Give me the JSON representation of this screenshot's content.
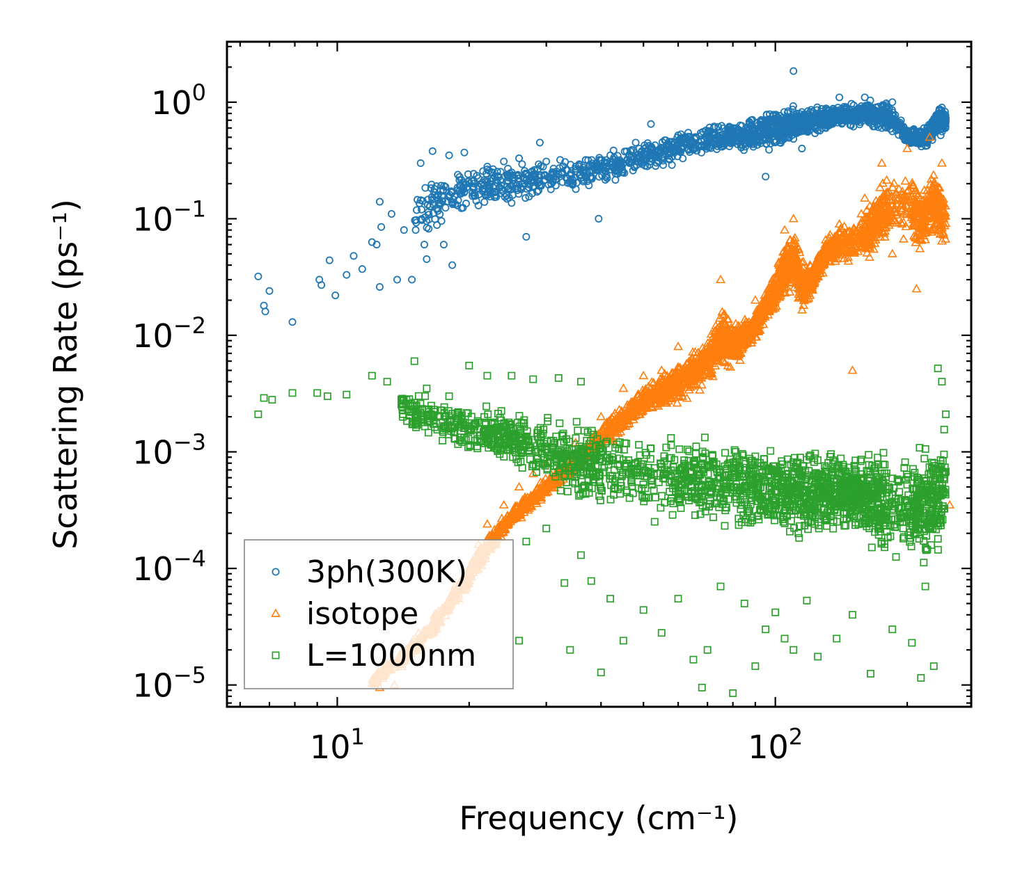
{
  "chart_data": {
    "type": "scatter",
    "xscale": "log",
    "yscale": "log",
    "xlim": [
      5.6,
      280
    ],
    "ylim": [
      6.5e-06,
      3.3
    ],
    "xlabel": "Frequency (cm⁻¹)",
    "ylabel": "Scattering Rate (ps⁻¹)",
    "x_ticks": [
      {
        "value": 10,
        "base": "10",
        "exp": "1"
      },
      {
        "value": 100,
        "base": "10",
        "exp": "2"
      }
    ],
    "y_ticks": [
      {
        "value": 1,
        "base": "10",
        "exp": "0"
      },
      {
        "value": 0.1,
        "base": "10",
        "exp": "−1"
      },
      {
        "value": 0.01,
        "base": "10",
        "exp": "−2"
      },
      {
        "value": 0.001,
        "base": "10",
        "exp": "−3"
      },
      {
        "value": 0.0001,
        "base": "10",
        "exp": "−4"
      },
      {
        "value": 1e-05,
        "base": "10",
        "exp": "−5"
      }
    ],
    "legend_position": "lower-left",
    "series": [
      {
        "name": "3ph(300K)",
        "marker": "circle",
        "color": "#1f77b4",
        "points": [
          [
            6.6,
            0.032
          ],
          [
            6.8,
            0.018
          ],
          [
            6.85,
            0.016
          ],
          [
            7.0,
            0.024
          ],
          [
            7.9,
            0.013
          ],
          [
            9.1,
            0.03
          ],
          [
            9.2,
            0.027
          ],
          [
            9.6,
            0.044
          ],
          [
            9.9,
            0.022
          ],
          [
            10.5,
            0.033
          ],
          [
            10.9,
            0.048
          ],
          [
            11.4,
            0.037
          ],
          [
            12.0,
            0.063
          ],
          [
            12.3,
            0.06
          ],
          [
            12.5,
            0.026
          ],
          [
            12.5,
            0.14
          ],
          [
            12.6,
            0.085
          ],
          [
            13.3,
            0.11
          ],
          [
            13.7,
            0.03
          ],
          [
            14.2,
            0.08
          ],
          [
            14.8,
            0.03
          ],
          [
            15.1,
            0.08
          ],
          [
            15.5,
            0.3
          ],
          [
            15.8,
            0.06
          ],
          [
            16.0,
            0.045
          ],
          [
            16.5,
            0.38
          ],
          [
            17.0,
            0.16
          ],
          [
            17.5,
            0.06
          ],
          [
            18.0,
            0.35
          ],
          [
            18.3,
            0.04
          ],
          [
            18.8,
            0.13
          ],
          [
            19.5,
            0.37
          ],
          [
            20.5,
            0.2
          ],
          [
            21.0,
            0.13
          ],
          [
            22.0,
            0.28
          ],
          [
            23.0,
            0.16
          ],
          [
            24.0,
            0.31
          ],
          [
            25.0,
            0.25
          ],
          [
            26.0,
            0.33
          ],
          [
            27.0,
            0.07
          ],
          [
            28.0,
            0.19
          ],
          [
            29.0,
            0.45
          ],
          [
            30.0,
            0.31
          ],
          [
            32.0,
            0.24
          ],
          [
            35.0,
            0.28
          ],
          [
            38.0,
            0.26
          ],
          [
            39.5,
            0.1
          ],
          [
            42.0,
            0.35
          ],
          [
            45.0,
            0.3
          ],
          [
            48.0,
            0.45
          ],
          [
            52.0,
            0.65
          ],
          [
            56.0,
            0.38
          ],
          [
            60.0,
            0.52
          ],
          [
            66.0,
            0.49
          ],
          [
            72.0,
            0.55
          ],
          [
            80.0,
            0.6
          ],
          [
            88.0,
            0.7
          ],
          [
            95.0,
            0.23
          ],
          [
            100.0,
            0.7
          ],
          [
            110.0,
            1.85
          ],
          [
            115.0,
            0.4
          ],
          [
            122.0,
            0.7
          ],
          [
            130.0,
            0.8
          ],
          [
            140.0,
            1.1
          ],
          [
            160.0,
            1.1
          ],
          [
            175.0,
            0.6
          ],
          [
            185.0,
            1.0
          ],
          [
            210.0,
            0.5
          ],
          [
            225.0,
            0.6
          ],
          [
            240.0,
            0.9
          ]
        ],
        "band": [
          [
            15,
            0.06,
            0.22
          ],
          [
            20,
            0.11,
            0.3
          ],
          [
            25,
            0.13,
            0.32
          ],
          [
            30,
            0.15,
            0.34
          ],
          [
            40,
            0.19,
            0.38
          ],
          [
            50,
            0.24,
            0.48
          ],
          [
            60,
            0.28,
            0.58
          ],
          [
            70,
            0.31,
            0.66
          ],
          [
            80,
            0.34,
            0.76
          ],
          [
            90,
            0.36,
            0.85
          ],
          [
            100,
            0.38,
            0.9
          ],
          [
            110,
            0.45,
            1.0
          ],
          [
            120,
            0.5,
            0.95
          ],
          [
            130,
            0.55,
            0.95
          ],
          [
            140,
            0.6,
            0.98
          ],
          [
            155,
            0.6,
            1.05
          ],
          [
            165,
            0.58,
            1.1
          ],
          [
            180,
            0.55,
            1.05
          ],
          [
            200,
            0.42,
            0.65
          ],
          [
            220,
            0.38,
            0.62
          ],
          [
            235,
            0.5,
            0.95
          ],
          [
            245,
            0.52,
            0.9
          ]
        ]
      },
      {
        "name": "isotope",
        "marker": "triangle",
        "color": "#ff7f0e",
        "points": [
          [
            12.5,
            9.5e-06
          ],
          [
            13.5,
            1e-05
          ],
          [
            14.0,
            1.5e-05
          ],
          [
            15.0,
            2e-05
          ],
          [
            16.0,
            3e-05
          ],
          [
            17.0,
            4e-05
          ],
          [
            18.0,
            5.5e-05
          ],
          [
            19.0,
            6.5e-05
          ],
          [
            20.0,
            0.0001
          ],
          [
            21.0,
            0.00016
          ],
          [
            22.0,
            0.00024
          ],
          [
            24.0,
            0.00035
          ],
          [
            26.0,
            0.0005
          ],
          [
            28.0,
            0.00065
          ],
          [
            30.0,
            0.0008
          ],
          [
            35.0,
            0.0012
          ],
          [
            40.0,
            0.002
          ],
          [
            45.0,
            0.0035
          ],
          [
            50.0,
            0.0045
          ],
          [
            55.0,
            0.005
          ],
          [
            60.0,
            0.008
          ],
          [
            65.0,
            0.006
          ],
          [
            75.0,
            0.03
          ],
          [
            90.0,
            0.02
          ],
          [
            105.0,
            0.08
          ],
          [
            110.0,
            0.1
          ],
          [
            120.0,
            0.04
          ],
          [
            130.0,
            0.06
          ],
          [
            140.0,
            0.09
          ],
          [
            150.0,
            0.005
          ],
          [
            160.0,
            0.15
          ],
          [
            175.0,
            0.3
          ],
          [
            185.0,
            0.05
          ],
          [
            200.0,
            0.4
          ],
          [
            210.0,
            0.025
          ],
          [
            225.0,
            0.5
          ],
          [
            240.0,
            0.3
          ],
          [
            250.0,
            0.00035
          ]
        ],
        "band": [
          [
            12,
            9.5e-06,
            1.2e-05
          ],
          [
            14,
            1.4e-05,
            2e-05
          ],
          [
            16,
            2.2e-05,
            3.5e-05
          ],
          [
            18,
            4e-05,
            6e-05
          ],
          [
            20,
            7e-05,
            0.00011
          ],
          [
            22,
            0.00012,
            0.0002
          ],
          [
            25,
            0.00022,
            0.00035
          ],
          [
            28,
            0.00032,
            0.0005
          ],
          [
            31,
            0.00045,
            0.0007
          ],
          [
            35,
            0.00065,
            0.001
          ],
          [
            40,
            0.001,
            0.0018
          ],
          [
            45,
            0.0014,
            0.0028
          ],
          [
            50,
            0.0018,
            0.004
          ],
          [
            55,
            0.0022,
            0.005
          ],
          [
            60,
            0.0025,
            0.006
          ],
          [
            65,
            0.003,
            0.008
          ],
          [
            70,
            0.0035,
            0.01
          ],
          [
            75,
            0.0045,
            0.02
          ],
          [
            80,
            0.005,
            0.014
          ],
          [
            85,
            0.006,
            0.016
          ],
          [
            90,
            0.008,
            0.018
          ],
          [
            95,
            0.012,
            0.026
          ],
          [
            100,
            0.015,
            0.04
          ],
          [
            105,
            0.02,
            0.07
          ],
          [
            110,
            0.022,
            0.09
          ],
          [
            115,
            0.015,
            0.05
          ],
          [
            120,
            0.02,
            0.04
          ],
          [
            125,
            0.03,
            0.05
          ],
          [
            130,
            0.035,
            0.07
          ],
          [
            140,
            0.04,
            0.09
          ],
          [
            160,
            0.04,
            0.12
          ],
          [
            170,
            0.05,
            0.2
          ],
          [
            180,
            0.06,
            0.25
          ],
          [
            205,
            0.06,
            0.3
          ],
          [
            215,
            0.04,
            0.2
          ],
          [
            230,
            0.06,
            0.35
          ],
          [
            245,
            0.05,
            0.2
          ]
        ]
      },
      {
        "name": "L=1000nm",
        "marker": "square",
        "color": "#2ca02c",
        "points": [
          [
            6.6,
            0.0021
          ],
          [
            6.8,
            0.0029
          ],
          [
            7.1,
            0.0028
          ],
          [
            7.9,
            0.0032
          ],
          [
            9.0,
            0.0032
          ],
          [
            9.5,
            0.003
          ],
          [
            10.5,
            0.0031
          ],
          [
            12.0,
            0.0045
          ],
          [
            13.0,
            0.004
          ],
          [
            15.0,
            0.006
          ],
          [
            16.0,
            0.0035
          ],
          [
            18.0,
            0.003
          ],
          [
            20.0,
            0.0055
          ],
          [
            22.0,
            0.0045
          ],
          [
            25.0,
            0.0045
          ],
          [
            28.0,
            0.0042
          ],
          [
            32.0,
            0.0043
          ],
          [
            36.0,
            0.004
          ],
          [
            26.0,
            2.4e-05
          ],
          [
            27.0,
            0.00017
          ],
          [
            30.0,
            0.00022
          ],
          [
            33.0,
            7.5e-05
          ],
          [
            34.0,
            2e-05
          ],
          [
            36.0,
            0.00013
          ],
          [
            38.0,
            7.8e-05
          ],
          [
            40.0,
            1.28e-05
          ],
          [
            42.0,
            5.5e-05
          ],
          [
            45.0,
            2.4e-05
          ],
          [
            50.0,
            4.4e-05
          ],
          [
            55.0,
            2.8e-05
          ],
          [
            60.0,
            5.5e-05
          ],
          [
            65.0,
            1.65e-05
          ],
          [
            68.0,
            9.5e-06
          ],
          [
            70.0,
            2e-05
          ],
          [
            75.0,
            7e-05
          ],
          [
            80.0,
            8.5e-06
          ],
          [
            85.0,
            5e-05
          ],
          [
            90.0,
            1.45e-05
          ],
          [
            95.0,
            3e-05
          ],
          [
            100.0,
            4.2e-05
          ],
          [
            105.0,
            2.5e-05
          ],
          [
            110.0,
            2e-05
          ],
          [
            118.0,
            5.3e-05
          ],
          [
            125.0,
            1.75e-05
          ],
          [
            138.0,
            2.5e-05
          ],
          [
            150.0,
            4e-05
          ],
          [
            165.0,
            1.25e-05
          ],
          [
            185.0,
            3e-05
          ],
          [
            205.0,
            2.3e-05
          ],
          [
            215.0,
            1.15e-05
          ],
          [
            220.0,
            7e-05
          ],
          [
            230.0,
            1.45e-05
          ],
          [
            240.0,
            0.004
          ],
          [
            245.0,
            0.0021
          ],
          [
            235.0,
            0.0052
          ]
        ],
        "band": [
          [
            14,
            0.0015,
            0.0035
          ],
          [
            18,
            0.001,
            0.003
          ],
          [
            22,
            0.0008,
            0.0028
          ],
          [
            26,
            0.0006,
            0.0025
          ],
          [
            30,
            0.00045,
            0.0022
          ],
          [
            35,
            0.00035,
            0.002
          ],
          [
            40,
            0.0003,
            0.0018
          ],
          [
            50,
            0.00025,
            0.0016
          ],
          [
            60,
            0.00022,
            0.0015
          ],
          [
            70,
            0.0002,
            0.0015
          ],
          [
            80,
            0.0002,
            0.0015
          ],
          [
            90,
            0.00018,
            0.0014
          ],
          [
            100,
            0.00016,
            0.0014
          ],
          [
            110,
            0.00015,
            0.0013
          ],
          [
            120,
            0.00015,
            0.0013
          ],
          [
            130,
            0.00016,
            0.0013
          ],
          [
            140,
            0.00018,
            0.0012
          ],
          [
            150,
            0.0002,
            0.001
          ],
          [
            160,
            0.00015,
            0.0012
          ],
          [
            170,
            0.00012,
            0.0014
          ],
          [
            180,
            0.0001,
            0.0013
          ],
          [
            205,
            0.0001,
            0.001
          ],
          [
            215,
            8e-05,
            0.0012
          ],
          [
            230,
            0.0001,
            0.0014
          ],
          [
            245,
            0.00015,
            0.0018
          ]
        ]
      }
    ]
  }
}
